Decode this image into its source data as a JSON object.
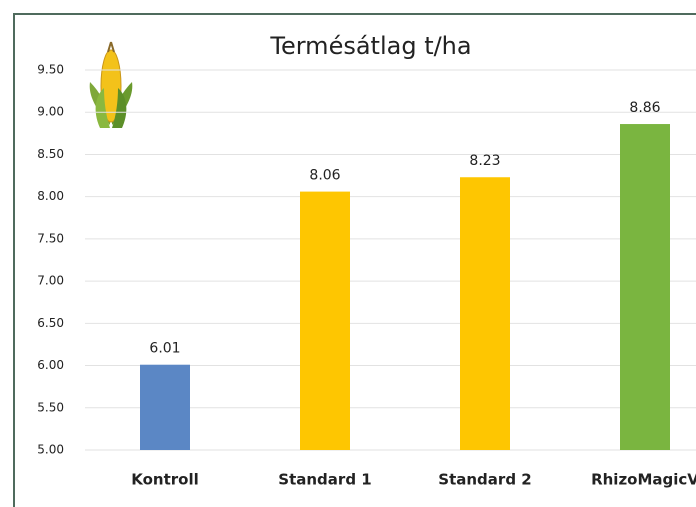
{
  "chart_data": {
    "type": "bar",
    "title": "Termésátlag t/ha",
    "categories": [
      "Kontroll",
      "Standard 1",
      "Standard 2",
      "RhizoMagicV"
    ],
    "values": [
      6.01,
      8.06,
      8.23,
      8.86
    ],
    "colors": [
      "#5b87c5",
      "#fec601",
      "#fec601",
      "#7ab540"
    ],
    "ylim": [
      5,
      9.5
    ],
    "yticks": [
      {
        "value": 5,
        "label": "5.00"
      },
      {
        "value": 5.5,
        "label": "5.50"
      },
      {
        "value": 6,
        "label": "6.00"
      },
      {
        "value": 6.5,
        "label": "6.50"
      },
      {
        "value": 7,
        "label": "7.00"
      },
      {
        "value": 7.5,
        "label": "7.50"
      },
      {
        "value": 8,
        "label": "8.00"
      },
      {
        "value": 8.5,
        "label": "8.50"
      },
      {
        "value": 9,
        "label": "9.00"
      },
      {
        "value": 9.5,
        "label": "9.50"
      }
    ],
    "grid": true
  }
}
